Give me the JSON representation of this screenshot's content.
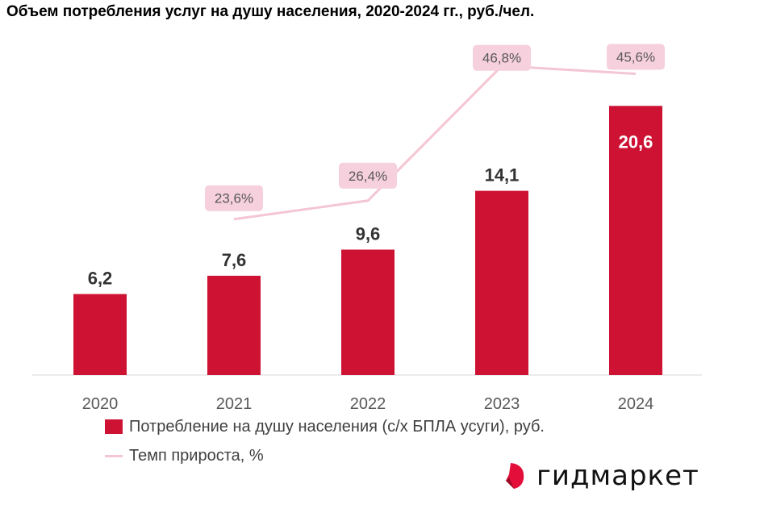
{
  "chart_data": {
    "type": "bar",
    "title": "Объем потребления услуг на душу населения, 2020-2024 гг., руб./чел.",
    "categories": [
      "2020",
      "2021",
      "2022",
      "2023",
      "2024"
    ],
    "series": [
      {
        "name": "Потребление на душу населения (с/х БПЛА усуги), руб.",
        "type": "bar",
        "values": [
          6.2,
          7.6,
          9.6,
          14.1,
          20.6
        ],
        "labels": [
          "6,2",
          "7,6",
          "9,6",
          "14,1",
          "20,6"
        ],
        "color": "#cd1233"
      },
      {
        "name": "Темп прироста, %",
        "type": "line",
        "values": [
          null,
          23.6,
          26.4,
          46.8,
          45.6
        ],
        "labels": [
          "",
          "23,6%",
          "26,4%",
          "46,8%",
          "45,6%"
        ],
        "color": "#f4c6d3"
      }
    ],
    "grid": false,
    "legend": "bottom"
  },
  "logo": {
    "text": "гидмаркет",
    "color": "#e30e3a"
  }
}
